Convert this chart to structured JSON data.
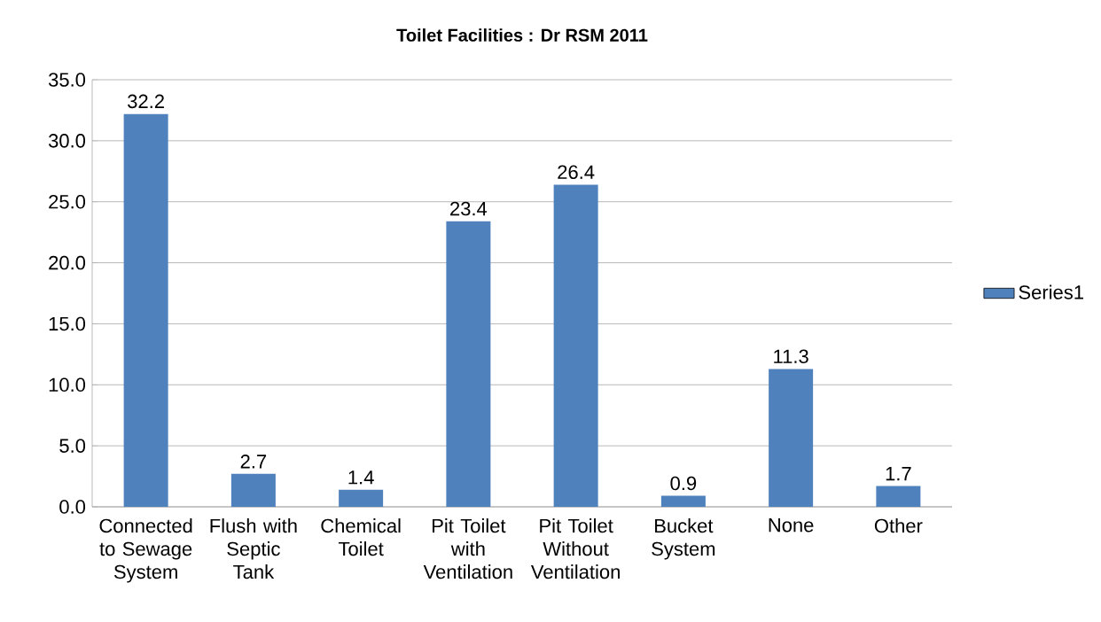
{
  "chart_data": {
    "type": "bar",
    "title": "Toilet Facilities : Dr RSM 2011",
    "categories": [
      "Connected to Sewage System",
      "Flush with Septic Tank",
      "Chemical Toilet",
      "Pit Toilet with Ventilation",
      "Pit Toilet Without Ventilation",
      "Bucket System",
      "None",
      "Other"
    ],
    "series": [
      {
        "name": "Series1",
        "color": "#4f81bd",
        "values": [
          32.2,
          2.7,
          1.4,
          23.4,
          26.4,
          0.9,
          11.3,
          1.7
        ]
      }
    ],
    "ylim": [
      0,
      35
    ],
    "yticks": [
      {
        "value": 0,
        "label": "0.0"
      },
      {
        "value": 5,
        "label": "5.0"
      },
      {
        "value": 10,
        "label": "10.0"
      },
      {
        "value": 15,
        "label": "15.0"
      },
      {
        "value": 20,
        "label": "20.0"
      },
      {
        "value": 25,
        "label": "25.0"
      },
      {
        "value": 30,
        "label": "30.0"
      },
      {
        "value": 35,
        "label": "35.0"
      }
    ],
    "grid": "y",
    "legend": "right",
    "data_labels": true
  }
}
